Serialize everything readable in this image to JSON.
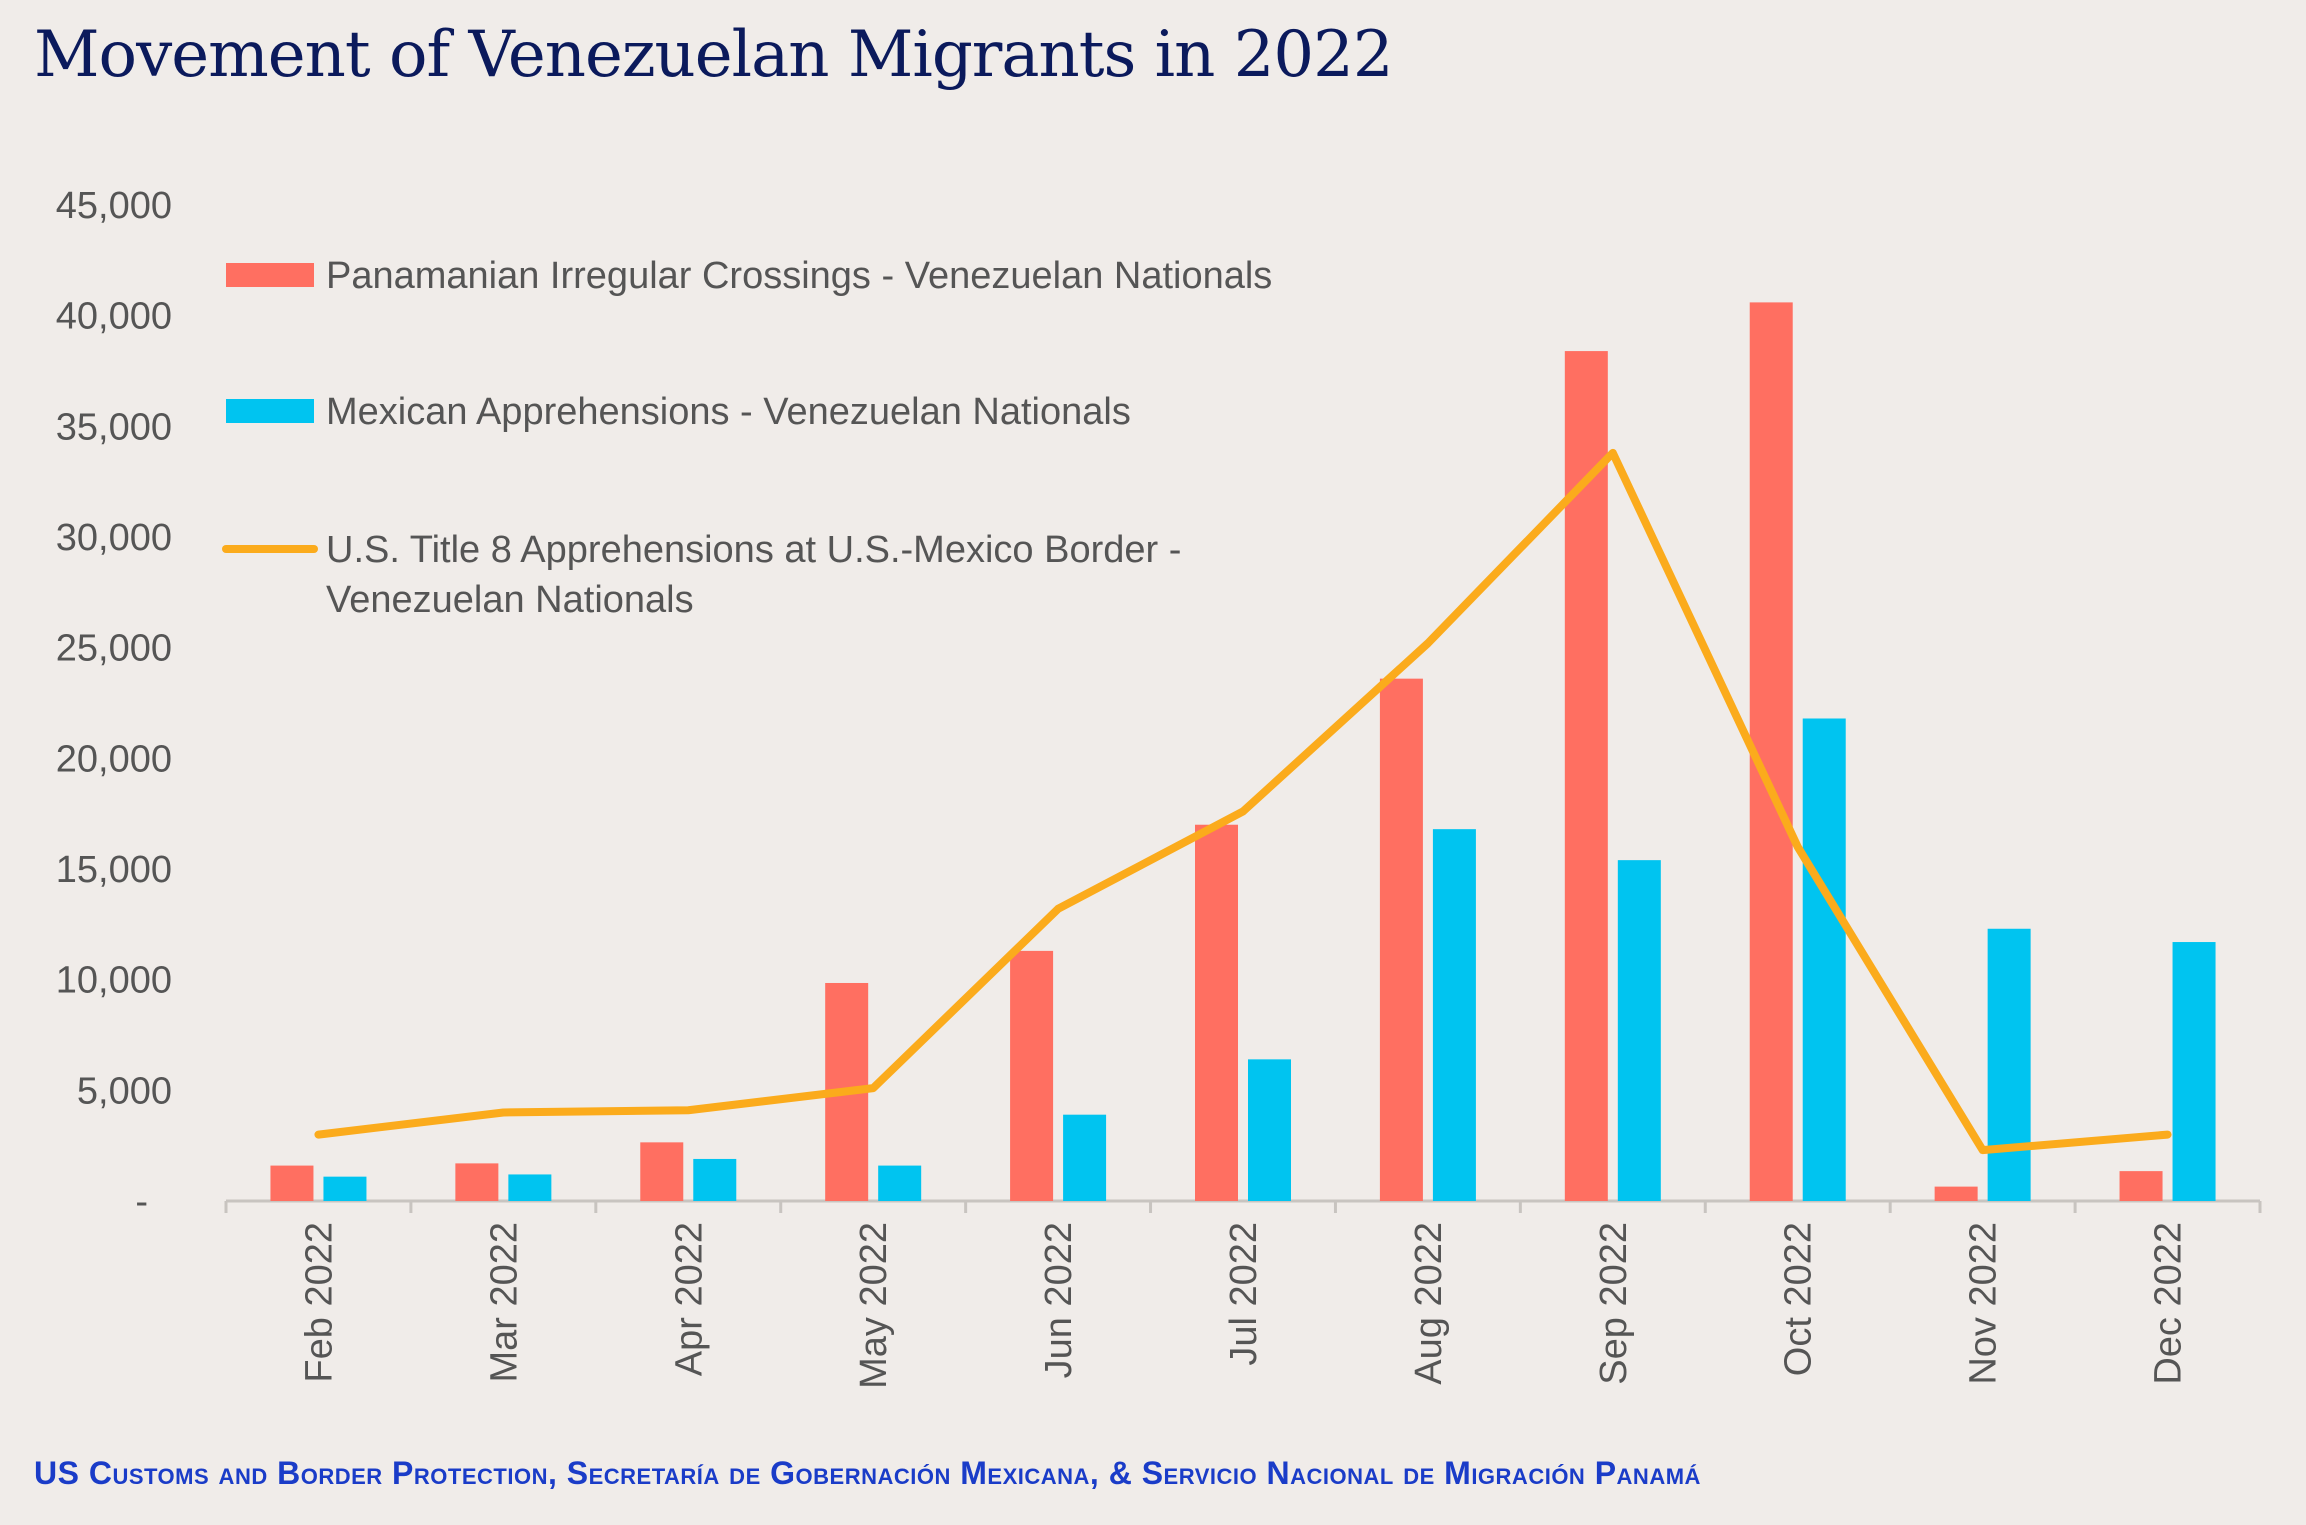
{
  "chart_data": {
    "type": "bar",
    "title": "Movement of Venezuelan Migrants in 2022",
    "source": "US Customs and Border Protection, Secretaría de Gobernación Mexicana, & Servicio Nacional de Migración Panamá",
    "categories": [
      "Feb 2022",
      "Mar 2022",
      "Apr 2022",
      "May 2022",
      "Jun 2022",
      "Jul 2022",
      "Aug 2022",
      "Sep 2022",
      "Oct 2022",
      "Nov 2022",
      "Dec 2022"
    ],
    "y_ticks": [
      "-",
      "5,000",
      "10,000",
      "15,000",
      "20,000",
      "25,000",
      "30,000",
      "35,000",
      "40,000",
      "45,000"
    ],
    "ylim": [
      0,
      45000
    ],
    "legend_position": "top-left",
    "series": [
      {
        "name": "Panamanian Irregular Crossings - Venezuelan Nationals",
        "kind": "bar",
        "color": "#ff6f61",
        "values": [
          1600,
          1700,
          2650,
          9850,
          11300,
          17000,
          23600,
          38400,
          40600,
          650,
          1350
        ]
      },
      {
        "name": "Mexican Apprehensions - Venezuelan Nationals",
        "kind": "bar",
        "color": "#00c4f0",
        "values": [
          1100,
          1200,
          1900,
          1600,
          3900,
          6400,
          16800,
          15400,
          21800,
          12300,
          11700
        ]
      },
      {
        "name": "U.S. Title 8 Apprehensions at U.S.-Mexico Border - Venezuelan Nationals",
        "name_lines": [
          "U.S. Title 8 Apprehensions at U.S.-Mexico Border -",
          "Venezuelan Nationals"
        ],
        "kind": "line",
        "color": "#fbab1c",
        "values": [
          3000,
          4000,
          4100,
          5100,
          13200,
          17600,
          25200,
          33800,
          16000,
          2300,
          3000
        ]
      }
    ]
  }
}
